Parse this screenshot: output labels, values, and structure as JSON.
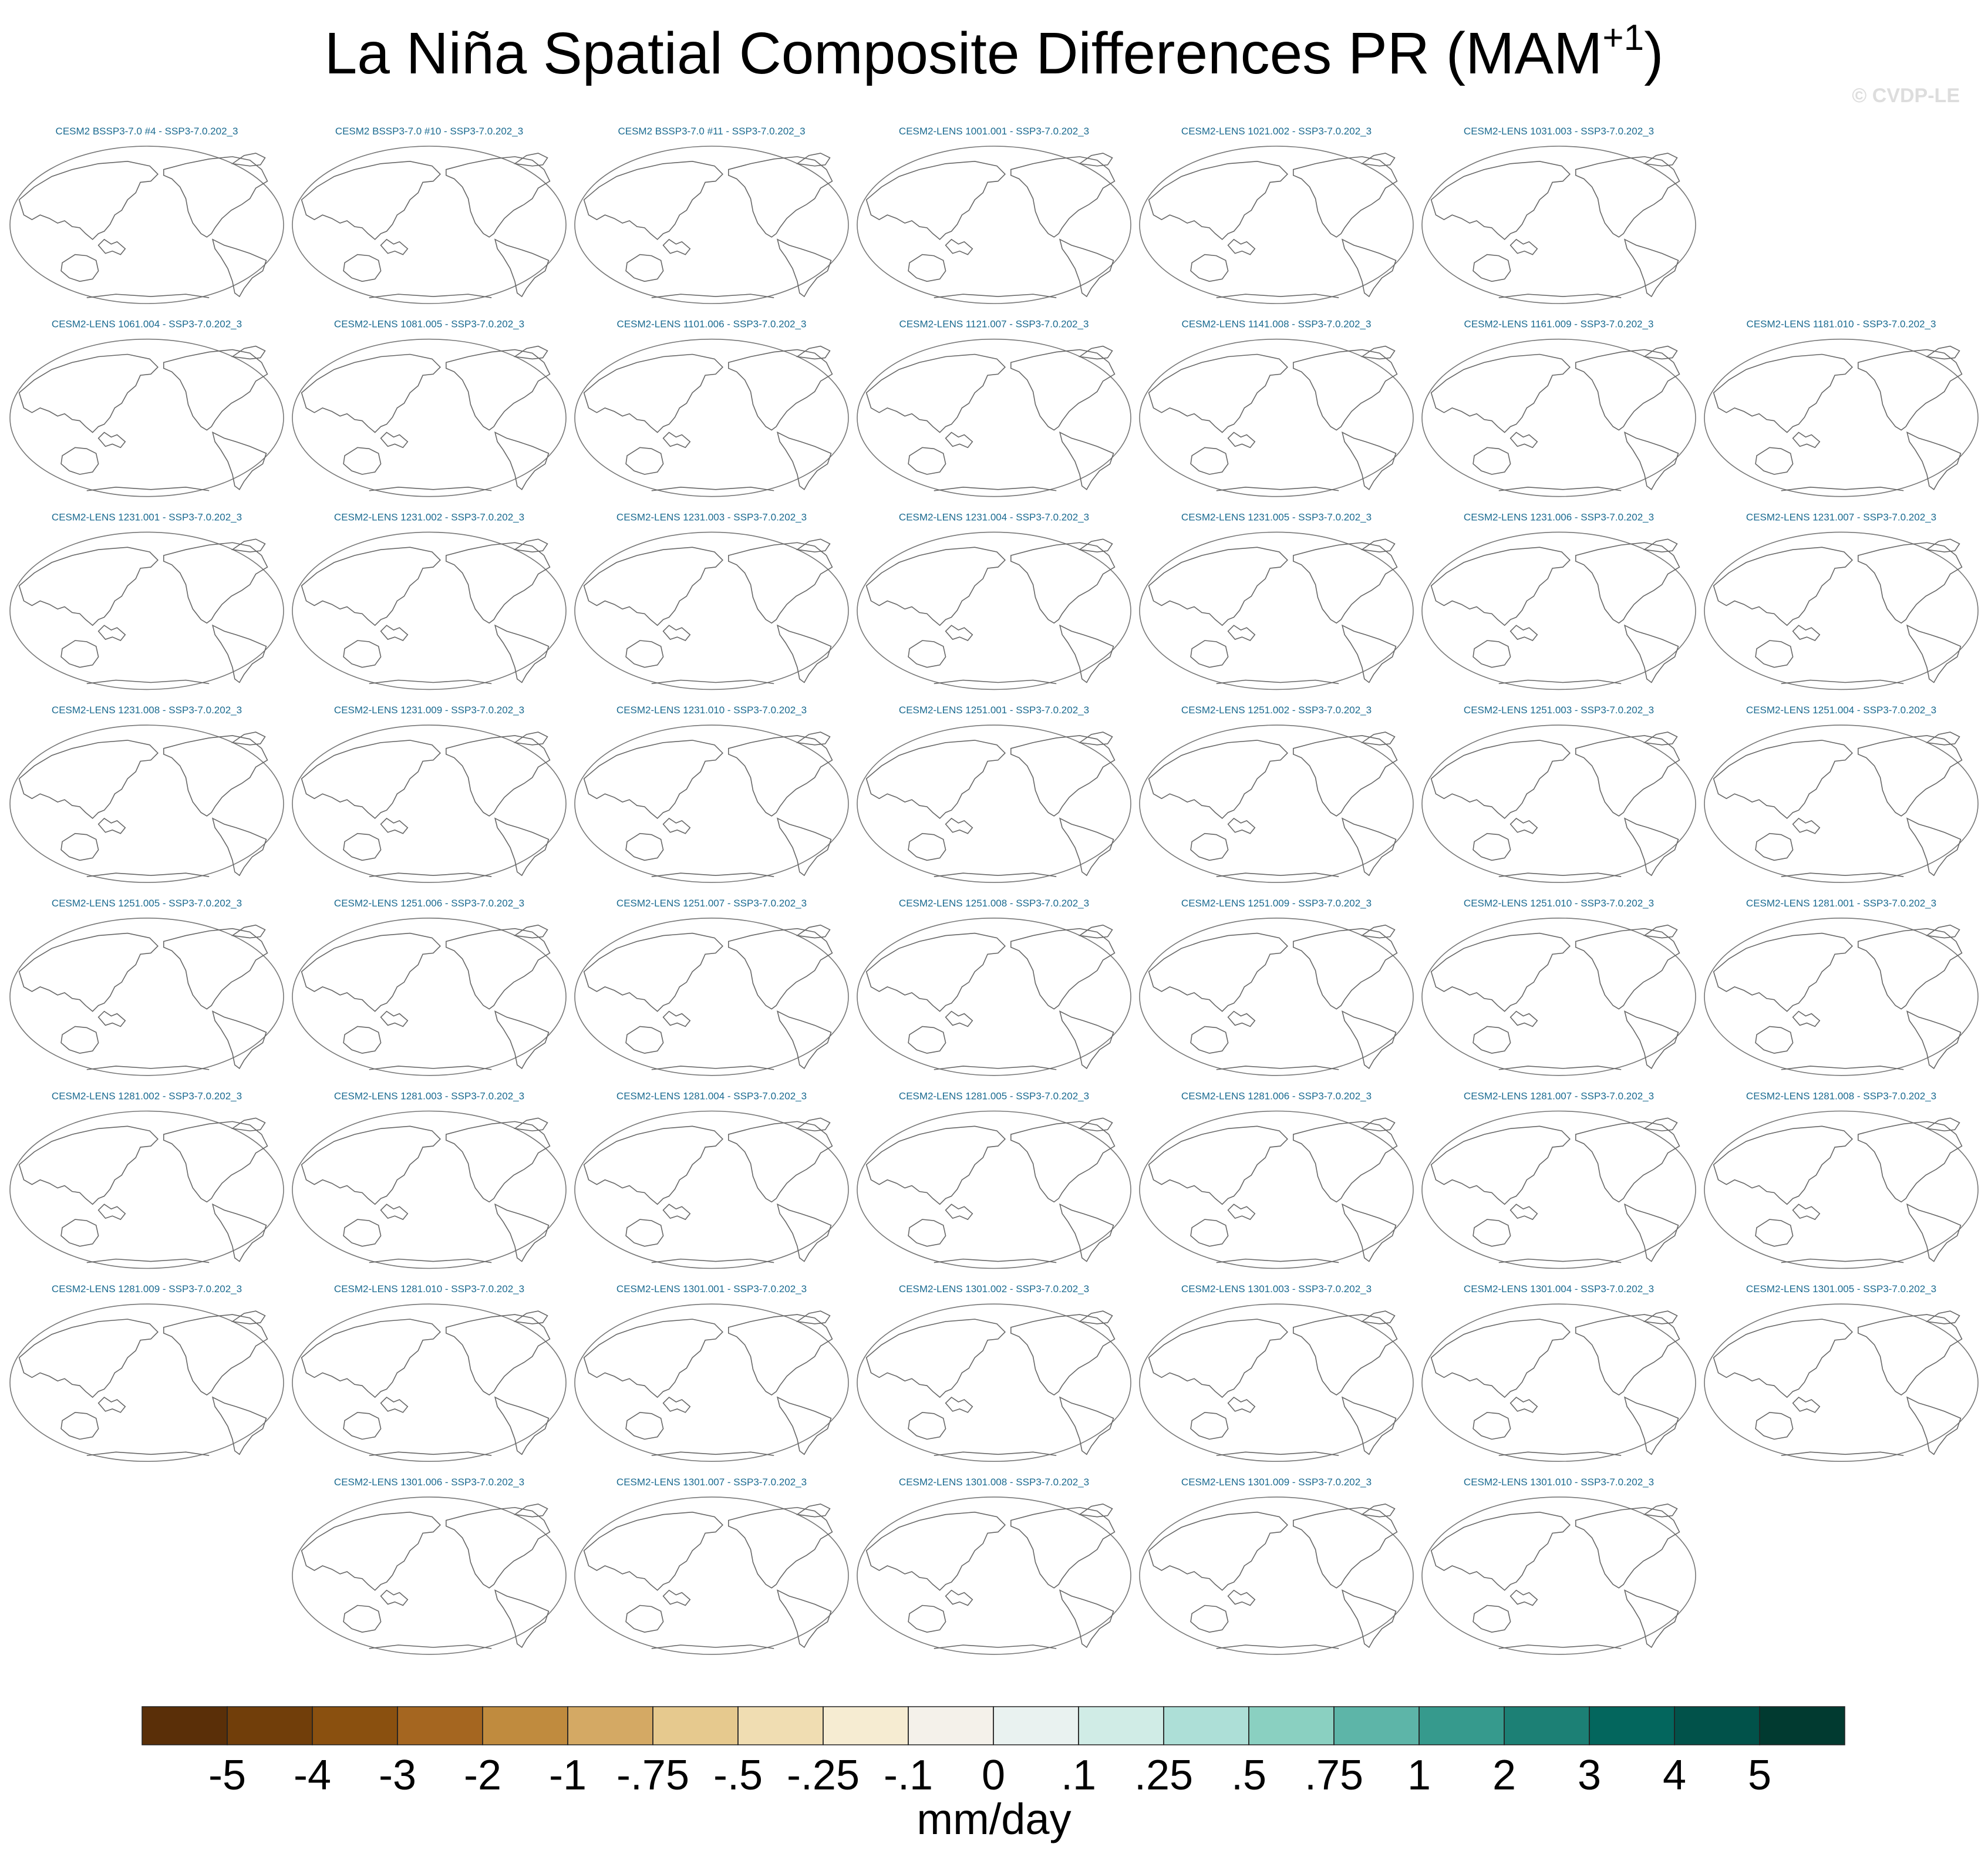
{
  "title": "La Niña Spatial Composite Differences PR (MAM",
  "title_superscript": "+1",
  "title_end": ")",
  "watermark": "© CVDP-LE",
  "panel_rows": [
    [
      "CESM2 BSSP3-7.0 #4 - SSP3-7.0.202_3",
      "CESM2 BSSP3-7.0 #10 - SSP3-7.0.202_3",
      "CESM2 BSSP3-7.0 #11 - SSP3-7.0.202_3",
      "CESM2-LENS 1001.001 - SSP3-7.0.202_3",
      "CESM2-LENS 1021.002 - SSP3-7.0.202_3",
      "CESM2-LENS 1031.003 - SSP3-7.0.202_3"
    ],
    [
      "CESM2-LENS 1061.004 - SSP3-7.0.202_3",
      "CESM2-LENS 1081.005 - SSP3-7.0.202_3",
      "CESM2-LENS 1101.006 - SSP3-7.0.202_3",
      "CESM2-LENS 1121.007 - SSP3-7.0.202_3",
      "CESM2-LENS 1141.008 - SSP3-7.0.202_3",
      "CESM2-LENS 1161.009 - SSP3-7.0.202_3",
      "CESM2-LENS 1181.010 - SSP3-7.0.202_3"
    ],
    [
      "CESM2-LENS 1231.001 - SSP3-7.0.202_3",
      "CESM2-LENS 1231.002 - SSP3-7.0.202_3",
      "CESM2-LENS 1231.003 - SSP3-7.0.202_3",
      "CESM2-LENS 1231.004 - SSP3-7.0.202_3",
      "CESM2-LENS 1231.005 - SSP3-7.0.202_3",
      "CESM2-LENS 1231.006 - SSP3-7.0.202_3",
      "CESM2-LENS 1231.007 - SSP3-7.0.202_3"
    ],
    [
      "CESM2-LENS 1231.008 - SSP3-7.0.202_3",
      "CESM2-LENS 1231.009 - SSP3-7.0.202_3",
      "CESM2-LENS 1231.010 - SSP3-7.0.202_3",
      "CESM2-LENS 1251.001 - SSP3-7.0.202_3",
      "CESM2-LENS 1251.002 - SSP3-7.0.202_3",
      "CESM2-LENS 1251.003 - SSP3-7.0.202_3",
      "CESM2-LENS 1251.004 - SSP3-7.0.202_3"
    ],
    [
      "CESM2-LENS 1251.005 - SSP3-7.0.202_3",
      "CESM2-LENS 1251.006 - SSP3-7.0.202_3",
      "CESM2-LENS 1251.007 - SSP3-7.0.202_3",
      "CESM2-LENS 1251.008 - SSP3-7.0.202_3",
      "CESM2-LENS 1251.009 - SSP3-7.0.202_3",
      "CESM2-LENS 1251.010 - SSP3-7.0.202_3",
      "CESM2-LENS 1281.001 - SSP3-7.0.202_3"
    ],
    [
      "CESM2-LENS 1281.002 - SSP3-7.0.202_3",
      "CESM2-LENS 1281.003 - SSP3-7.0.202_3",
      "CESM2-LENS 1281.004 - SSP3-7.0.202_3",
      "CESM2-LENS 1281.005 - SSP3-7.0.202_3",
      "CESM2-LENS 1281.006 - SSP3-7.0.202_3",
      "CESM2-LENS 1281.007 - SSP3-7.0.202_3",
      "CESM2-LENS 1281.008 - SSP3-7.0.202_3"
    ],
    [
      "CESM2-LENS 1281.009 - SSP3-7.0.202_3",
      "CESM2-LENS 1281.010 - SSP3-7.0.202_3",
      "CESM2-LENS 1301.001 - SSP3-7.0.202_3",
      "CESM2-LENS 1301.002 - SSP3-7.0.202_3",
      "CESM2-LENS 1301.003 - SSP3-7.0.202_3",
      "CESM2-LENS 1301.004 - SSP3-7.0.202_3",
      "CESM2-LENS 1301.005 - SSP3-7.0.202_3"
    ],
    [
      "CESM2-LENS 1301.006 - SSP3-7.0.202_3",
      "CESM2-LENS 1301.007 - SSP3-7.0.202_3",
      "CESM2-LENS 1301.008 - SSP3-7.0.202_3",
      "CESM2-LENS 1301.009 - SSP3-7.0.202_3",
      "CESM2-LENS 1301.010 - SSP3-7.0.202_3"
    ]
  ],
  "colorbar": {
    "label": "mm/day",
    "colors": [
      "#5a2f08",
      "#713e0a",
      "#8a500f",
      "#a56620",
      "#c08b3e",
      "#d4a964",
      "#e6c98e",
      "#f0ddb2",
      "#f6ecd2",
      "#f4f1ea",
      "#e9f2f0",
      "#d0ece6",
      "#addfd7",
      "#8ad0c1",
      "#5db5a8",
      "#369a8d",
      "#1c8075",
      "#03665d",
      "#01524a",
      "#013a30"
    ],
    "ticks": [
      -5,
      -4,
      -3,
      -2,
      -1,
      {
        "value": -0.75,
        "label": "-.75"
      },
      {
        "value": -0.5,
        "label": "-.5"
      },
      {
        "value": -0.25,
        "label": "-.25"
      },
      {
        "value": -0.1,
        "label": "-.1"
      },
      0,
      {
        "value": 0.1,
        "label": ".1"
      },
      {
        "value": 0.25,
        "label": ".25"
      },
      {
        "value": 0.5,
        "label": ".5"
      },
      {
        "value": 0.75,
        "label": ".75"
      },
      1,
      2,
      3,
      4,
      5
    ]
  }
}
